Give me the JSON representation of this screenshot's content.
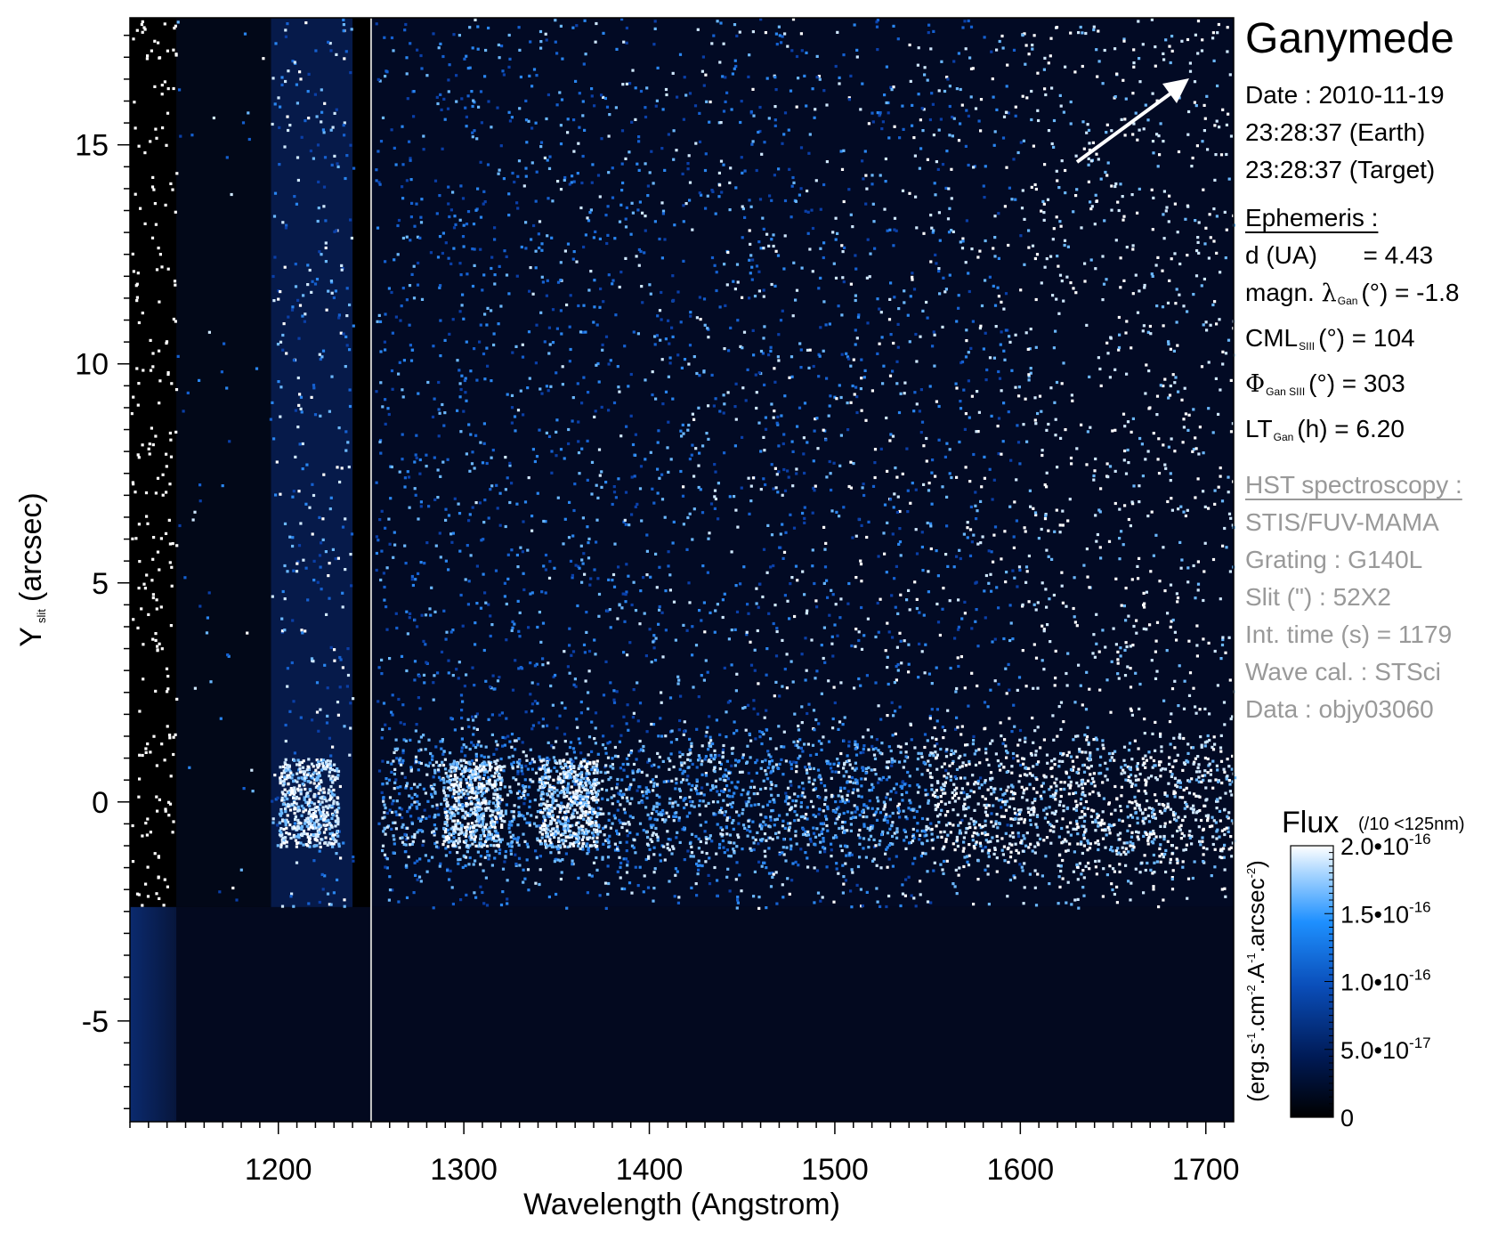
{
  "chart_data": {
    "type": "heatmap",
    "title": "Ganymede",
    "xlabel": "Wavelength (Angstrom)",
    "ylabel": "Y_slit (arcsec)",
    "ylabel_main": "Y",
    "ylabel_sub": "slit",
    "ylabel_unit": "(arcsec)",
    "xlim": [
      1120,
      1715
    ],
    "ylim": [
      -7.3,
      17.9
    ],
    "xticks": [
      1200,
      1300,
      1400,
      1500,
      1600,
      1700
    ],
    "xtick_labels": [
      "1200",
      "1300",
      "1400",
      "1500",
      "1600",
      "1700"
    ],
    "yticks": [
      -5,
      0,
      5,
      10,
      15
    ],
    "ytick_labels": [
      "-5",
      "0",
      "5",
      "10",
      "15"
    ],
    "colorbar": {
      "title": "Flux",
      "note": "(/10 <125nm)",
      "unit_label": "(erg.s-1.cm-2.A-1.arcsec-2)",
      "range": [
        0,
        2e-16
      ],
      "ticks": [
        0,
        5e-17,
        1e-16,
        1.5e-16,
        2e-16
      ],
      "tick_labels": [
        {
          "mant": "0",
          "exp": ""
        },
        {
          "mant": "5.0•10",
          "exp": "-17"
        },
        {
          "mant": "1.0•10",
          "exp": "-16"
        },
        {
          "mant": "1.5•10",
          "exp": "-16"
        },
        {
          "mant": "2.0•10",
          "exp": "-16"
        }
      ],
      "colors": [
        "#000000",
        "#001a55",
        "#0a4db8",
        "#1e90ff",
        "#a9d6ff",
        "#ffffff"
      ]
    },
    "features": {
      "lyman_alpha_wavelength": 1216,
      "emission_band_y": 0,
      "bright_spots_wavelength": [
        1304,
        1356
      ],
      "bright_continuum_start": 1550,
      "separator_wavelength": 1250,
      "lower_cutoff_y": -2.4
    }
  },
  "panel": {
    "target": "Ganymede",
    "date_line": "Date : 2010-11-19",
    "time_earth": "23:28:37 (Earth)",
    "time_target": "23:28:37 (Target)",
    "ephemeris_header": "Ephemeris :",
    "d_label": "d (UA)",
    "d_value": "= 4.43",
    "magn_label": "magn.",
    "magn_greek": "λ",
    "magn_sub": "Gan",
    "magn_rest": "(°)  = -1.8",
    "cml_label": "CML",
    "cml_sub": "SIII",
    "cml_rest": "(°) = 104",
    "phi_greek": "Φ",
    "phi_sub": "Gan SIII",
    "phi_rest": "(°) = 303",
    "lt_label": "LT",
    "lt_sub": "Gan",
    "lt_rest": "(h) = 6.20",
    "hst_header": "HST spectroscopy :",
    "instrument": "STIS/FUV-MAMA",
    "grating": "Grating : G140L",
    "slit": "Slit (\") : 52X2",
    "int_time": "Int. time (s) = 1179",
    "wave_cal": "Wave cal. : STSci",
    "dataset": "Data : objy03060"
  }
}
